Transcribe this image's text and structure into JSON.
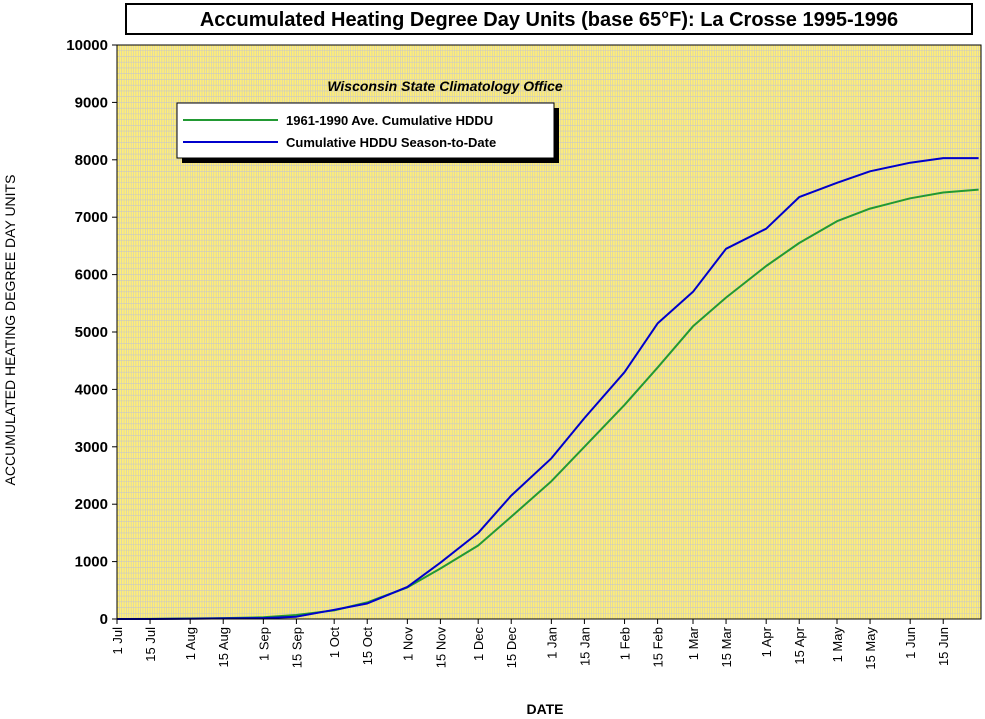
{
  "chart_data": {
    "type": "line",
    "title": "Accumulated Heating Degree Day Units (base 65°F): La Crosse 1995-1996",
    "subtitle": "Wisconsin State Climatology Office",
    "xlabel": "DATE",
    "ylabel": "ACCUMULATED HEATING DEGREE DAY UNITS",
    "ylim": [
      0,
      10000
    ],
    "xlim": [
      "1995-07-01",
      "1996-06-30"
    ],
    "yticks": [
      "0",
      "1000",
      "2000",
      "3000",
      "4000",
      "5000",
      "6000",
      "7000",
      "8000",
      "9000",
      "10000"
    ],
    "xticks": [
      {
        "label": "1 Jul",
        "date": "1995-07-01"
      },
      {
        "label": "15 Jul",
        "date": "1995-07-15"
      },
      {
        "label": "1 Aug",
        "date": "1995-08-01"
      },
      {
        "label": "15 Aug",
        "date": "1995-08-15"
      },
      {
        "label": "1 Sep",
        "date": "1995-09-01"
      },
      {
        "label": "15 Sep",
        "date": "1995-09-15"
      },
      {
        "label": "1 Oct",
        "date": "1995-10-01"
      },
      {
        "label": "15 Oct",
        "date": "1995-10-15"
      },
      {
        "label": "1 Nov",
        "date": "1995-11-01"
      },
      {
        "label": "15 Nov",
        "date": "1995-11-15"
      },
      {
        "label": "1 Dec",
        "date": "1995-12-01"
      },
      {
        "label": "15 Dec",
        "date": "1995-12-15"
      },
      {
        "label": "1 Jan",
        "date": "1996-01-01"
      },
      {
        "label": "15 Jan",
        "date": "1996-01-15"
      },
      {
        "label": "1 Feb",
        "date": "1996-02-01"
      },
      {
        "label": "15 Feb",
        "date": "1996-02-15"
      },
      {
        "label": "1 Mar",
        "date": "1996-03-01"
      },
      {
        "label": "15 Mar",
        "date": "1996-03-15"
      },
      {
        "label": "1 Apr",
        "date": "1996-04-01"
      },
      {
        "label": "15 Apr",
        "date": "1996-04-15"
      },
      {
        "label": "1 May",
        "date": "1996-05-01"
      },
      {
        "label": "15 May",
        "date": "1996-05-15"
      },
      {
        "label": "1 Jun",
        "date": "1996-06-01"
      },
      {
        "label": "15 Jun",
        "date": "1996-06-15"
      }
    ],
    "grid": true,
    "legend_position": "top-left",
    "background_color": "#ffee77",
    "grid_color": "#c8c8c8",
    "series": [
      {
        "name": "1961-1990 Ave. Cumulative HDDU",
        "color": "#229933",
        "points": [
          [
            "1995-07-01",
            0
          ],
          [
            "1995-07-15",
            2
          ],
          [
            "1995-08-01",
            8
          ],
          [
            "1995-08-15",
            15
          ],
          [
            "1995-09-01",
            30
          ],
          [
            "1995-09-15",
            70
          ],
          [
            "1995-10-01",
            150
          ],
          [
            "1995-10-15",
            290
          ],
          [
            "1995-11-01",
            550
          ],
          [
            "1995-11-15",
            880
          ],
          [
            "1995-12-01",
            1280
          ],
          [
            "1995-12-15",
            1780
          ],
          [
            "1996-01-01",
            2400
          ],
          [
            "1996-01-15",
            3000
          ],
          [
            "1996-02-01",
            3730
          ],
          [
            "1996-02-15",
            4380
          ],
          [
            "1996-03-01",
            5100
          ],
          [
            "1996-03-15",
            5600
          ],
          [
            "1996-04-01",
            6150
          ],
          [
            "1996-04-15",
            6550
          ],
          [
            "1996-05-01",
            6930
          ],
          [
            "1996-05-15",
            7150
          ],
          [
            "1996-06-01",
            7330
          ],
          [
            "1996-06-15",
            7430
          ],
          [
            "1996-06-30",
            7480
          ]
        ]
      },
      {
        "name": "Cumulative HDDU Season-to-Date",
        "color": "#0000cc",
        "points": [
          [
            "1995-07-01",
            0
          ],
          [
            "1995-07-15",
            0
          ],
          [
            "1995-08-01",
            5
          ],
          [
            "1995-08-15",
            10
          ],
          [
            "1995-09-01",
            15
          ],
          [
            "1995-09-15",
            40
          ],
          [
            "1995-10-01",
            160
          ],
          [
            "1995-10-15",
            270
          ],
          [
            "1995-11-01",
            560
          ],
          [
            "1995-11-15",
            980
          ],
          [
            "1995-12-01",
            1500
          ],
          [
            "1995-12-15",
            2150
          ],
          [
            "1996-01-01",
            2800
          ],
          [
            "1996-01-15",
            3500
          ],
          [
            "1996-02-01",
            4300
          ],
          [
            "1996-02-15",
            5150
          ],
          [
            "1996-03-01",
            5700
          ],
          [
            "1996-03-15",
            6450
          ],
          [
            "1996-04-01",
            6800
          ],
          [
            "1996-04-15",
            7350
          ],
          [
            "1996-05-01",
            7600
          ],
          [
            "1996-05-15",
            7800
          ],
          [
            "1996-06-01",
            7950
          ],
          [
            "1996-06-15",
            8030
          ],
          [
            "1996-06-30",
            8030
          ]
        ]
      }
    ]
  }
}
